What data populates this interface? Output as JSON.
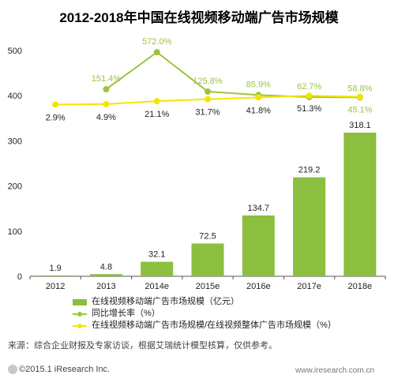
{
  "chart_data": {
    "type": "bar",
    "title": "2012-2018年中国在线视频移动端广告市场规模",
    "categories": [
      "2012",
      "2013",
      "2014e",
      "2015e",
      "2016e",
      "2017e",
      "2018e"
    ],
    "ylim": [
      0,
      500
    ],
    "yticks": [
      "0",
      "100",
      "200",
      "300",
      "400",
      "500"
    ],
    "series": [
      {
        "name": "在线视频移动端广告市场规模（亿元）",
        "type": "bar",
        "color": "#8cbe3f",
        "values": [
          1.9,
          4.8,
          32.1,
          72.5,
          134.7,
          219.2,
          318.1
        ],
        "labels": [
          "1.9",
          "4.8",
          "32.1",
          "72.5",
          "134.7",
          "219.2",
          "318.1"
        ]
      },
      {
        "name": "同比增长率（%）",
        "type": "line",
        "color": "#9bc43c",
        "values": [
          null,
          151.4,
          572.0,
          125.8,
          85.9,
          62.7,
          58.8
        ],
        "labels": [
          "",
          "151.4%",
          "572.0%",
          "125.8%",
          "85.9%",
          "62.7%",
          "58.8%"
        ]
      },
      {
        "name": "在线视频移动端广告市场规模/在线视频整体广告市场规模（%）",
        "type": "line",
        "color": "#f5e400",
        "values": [
          2.9,
          4.9,
          21.1,
          31.7,
          41.8,
          51.3,
          45.1
        ],
        "labels": [
          "2.9%",
          "4.9%",
          "21.1%",
          "31.7%",
          "41.8%",
          "51.3%",
          "45.1%"
        ]
      }
    ]
  },
  "footer": {
    "source": "来源：综合企业财报及专家访谈，根据艾瑞统计模型核算，仅供参考。",
    "copyright": "©2015.1 iResearch Inc.",
    "website": "www.iresearch.com.cn"
  }
}
